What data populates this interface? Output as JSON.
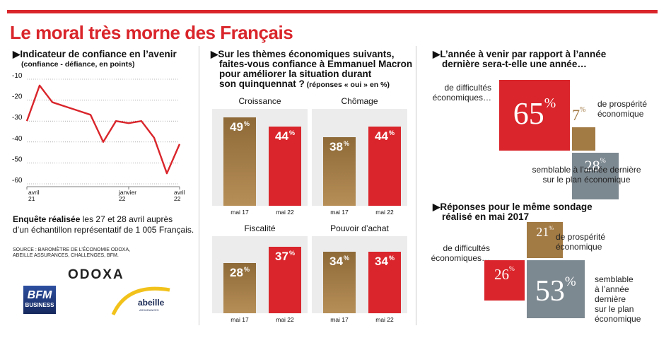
{
  "title": "Le moral très morne des Français",
  "colors": {
    "accent": "#d9252b",
    "gold": "#a27a44",
    "red": "#d9252b",
    "grey": "#7d8991"
  },
  "line_panel": {
    "title": "▶Indicateur de confiance en l’avenir",
    "subtitle": "(confiance - défiance, en points)",
    "y_ticks": [
      "-10",
      "-20",
      "-30",
      "-40",
      "-50",
      "-60"
    ],
    "x_labels": [
      {
        "text": "avril\n21"
      },
      {
        "text": "janvier\n22"
      },
      {
        "text": "avril\n22"
      }
    ],
    "survey_note_bold": "Enquête réalisée",
    "survey_note_rest": " les 27 et 28 avril auprès",
    "survey_note_line2": "d’un échantillon représentatif de 1 005 Français.",
    "source_line1": "SOURCE : BAROMÈTRE DE L’ÉCONOMIE ODOXA,",
    "source_line2": "ABEILLE ASSURANCES, CHALLENGES, BFM.",
    "logos": {
      "odoxa": "ODOXA",
      "bfm_line1": "BFM",
      "bfm_line2": "BUSINESS",
      "abeille": "abeille",
      "abeille_sub": "ASSURANCES"
    }
  },
  "bar_panel": {
    "title_lines": [
      "▶Sur les thèmes économiques suivants,",
      "faites-vous confiance à Emmanuel Macron",
      "pour améliorer la situation durant"
    ],
    "title_last": "son quinquennat ?",
    "title_note": " (réponses « oui » en %)",
    "x_labels": [
      "mai 17",
      "mai 22"
    ]
  },
  "square_panel_1": {
    "title_lines": [
      "▶L’année à venir par rapport à l’année",
      "dernière sera-t-elle une année…"
    ],
    "label_difficult": [
      "de difficultés",
      "économiques…"
    ],
    "label_prosperity": [
      "de prospérité",
      "économique"
    ],
    "label_similar": [
      "semblable à l’année dernière",
      "sur le plan économique"
    ],
    "values": {
      "difficult": "65",
      "prosperity": "7",
      "similar": "28"
    }
  },
  "square_panel_2": {
    "title_lines": [
      "▶Réponses pour le même sondage",
      "réalisé en mai 2017"
    ],
    "label_difficult": [
      "de difficultés",
      "économiques…"
    ],
    "label_prosperity": [
      "de prospérité",
      "économique"
    ],
    "label_similar": [
      "semblable",
      "à l’année",
      "dernière",
      "sur le plan",
      "économique"
    ],
    "values": {
      "difficult": "26",
      "prosperity": "21",
      "similar": "53"
    }
  },
  "chart_data": [
    {
      "type": "line",
      "title": "Indicateur de confiance en l’avenir",
      "ylabel": "confiance - défiance, en points",
      "ylim": [
        -60,
        -10
      ],
      "x_tick_labels": [
        "avril 21",
        "janvier 22",
        "avril 22"
      ],
      "values": [
        -30,
        -13,
        -21,
        -23,
        -25,
        -27,
        -40,
        -30,
        -31,
        -30,
        -38,
        -55,
        -41
      ]
    },
    {
      "type": "bar",
      "title": "Sur les thèmes économiques suivants, faites-vous confiance à Emmanuel Macron pour améliorer la situation durant son quinquennat ? (réponses « oui » en %)",
      "categories": [
        "mai 17",
        "mai 22"
      ],
      "ylim": [
        0,
        50
      ],
      "series": [
        {
          "name": "Croissance",
          "values": [
            49,
            44
          ]
        },
        {
          "name": "Chômage",
          "values": [
            38,
            44
          ]
        },
        {
          "name": "Fiscalité",
          "values": [
            28,
            37
          ]
        },
        {
          "name": "Pouvoir d’achat",
          "values": [
            34,
            34
          ]
        }
      ]
    },
    {
      "type": "area",
      "title": "L’année à venir par rapport à l’année dernière sera-t-elle une année…",
      "categories": [
        "de difficultés économiques",
        "de prospérité économique",
        "semblable à l’année dernière sur le plan économique"
      ],
      "values": [
        65,
        7,
        28
      ]
    },
    {
      "type": "area",
      "title": "Réponses pour le même sondage réalisé en mai 2017",
      "categories": [
        "de difficultés économiques",
        "de prospérité économique",
        "semblable à l’année dernière sur le plan économique"
      ],
      "values": [
        26,
        21,
        53
      ]
    }
  ]
}
